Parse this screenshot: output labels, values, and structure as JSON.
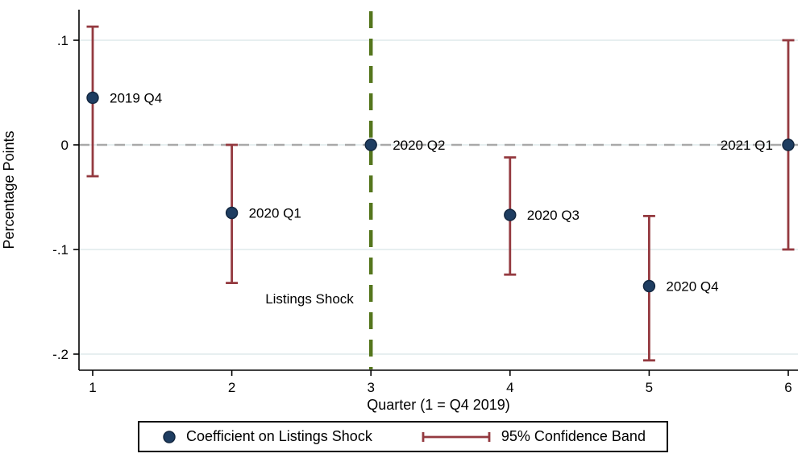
{
  "chart_data": {
    "type": "scatter",
    "subtype": "coefficient-plot-with-confidence-intervals",
    "title": "",
    "xlabel": "Quarter (1 = Q4 2019)",
    "ylabel": "Percentage Points",
    "xlim": [
      0.9,
      6.1
    ],
    "ylim": [
      -0.215,
      0.13
    ],
    "xticks": [
      1,
      2,
      3,
      4,
      5,
      6
    ],
    "yticks": [
      0.1,
      0,
      -0.1,
      -0.2
    ],
    "ytick_labels": [
      ".1",
      "0",
      "-.1",
      "-.2"
    ],
    "grid": "horizontal",
    "legend_position": "bottom",
    "series": [
      {
        "name": "Coefficient on Listings Shock",
        "points": [
          {
            "x": 1,
            "label": "2019 Q4",
            "coef": 0.045,
            "ci_low": -0.03,
            "ci_high": 0.113,
            "label_side": "right"
          },
          {
            "x": 2,
            "label": "2020 Q1",
            "coef": -0.065,
            "ci_low": -0.132,
            "ci_high": 0.0,
            "label_side": "right"
          },
          {
            "x": 3,
            "label": "2020 Q2",
            "coef": 0.0,
            "ci_low": 0.0,
            "ci_high": 0.0,
            "label_side": "right"
          },
          {
            "x": 4,
            "label": "2020 Q3",
            "coef": -0.067,
            "ci_low": -0.124,
            "ci_high": -0.012,
            "label_side": "right"
          },
          {
            "x": 5,
            "label": "2020 Q4",
            "coef": -0.135,
            "ci_low": -0.206,
            "ci_high": -0.068,
            "label_side": "right"
          },
          {
            "x": 6,
            "label": "2021 Q1",
            "coef": 0.0,
            "ci_low": -0.1,
            "ci_high": 0.1,
            "label_side": "left"
          }
        ]
      }
    ],
    "reference_lines": {
      "zero_line_y": 0,
      "shock_line_x": 3,
      "shock_label": "Listings Shock"
    },
    "legend": [
      {
        "symbol": "dot",
        "label": "Coefficient on Listings Shock"
      },
      {
        "symbol": "ci-band",
        "label": "95% Confidence Band"
      }
    ],
    "colors": {
      "coefficient": "#1e3d61",
      "coefficient_edge": "#12263f",
      "ci": "#943a40",
      "shock_line": "#55761d",
      "zero_line": "#a9a9a9",
      "gridline": "#dfeaec",
      "axis": "#000000",
      "background": "#ffffff"
    }
  }
}
